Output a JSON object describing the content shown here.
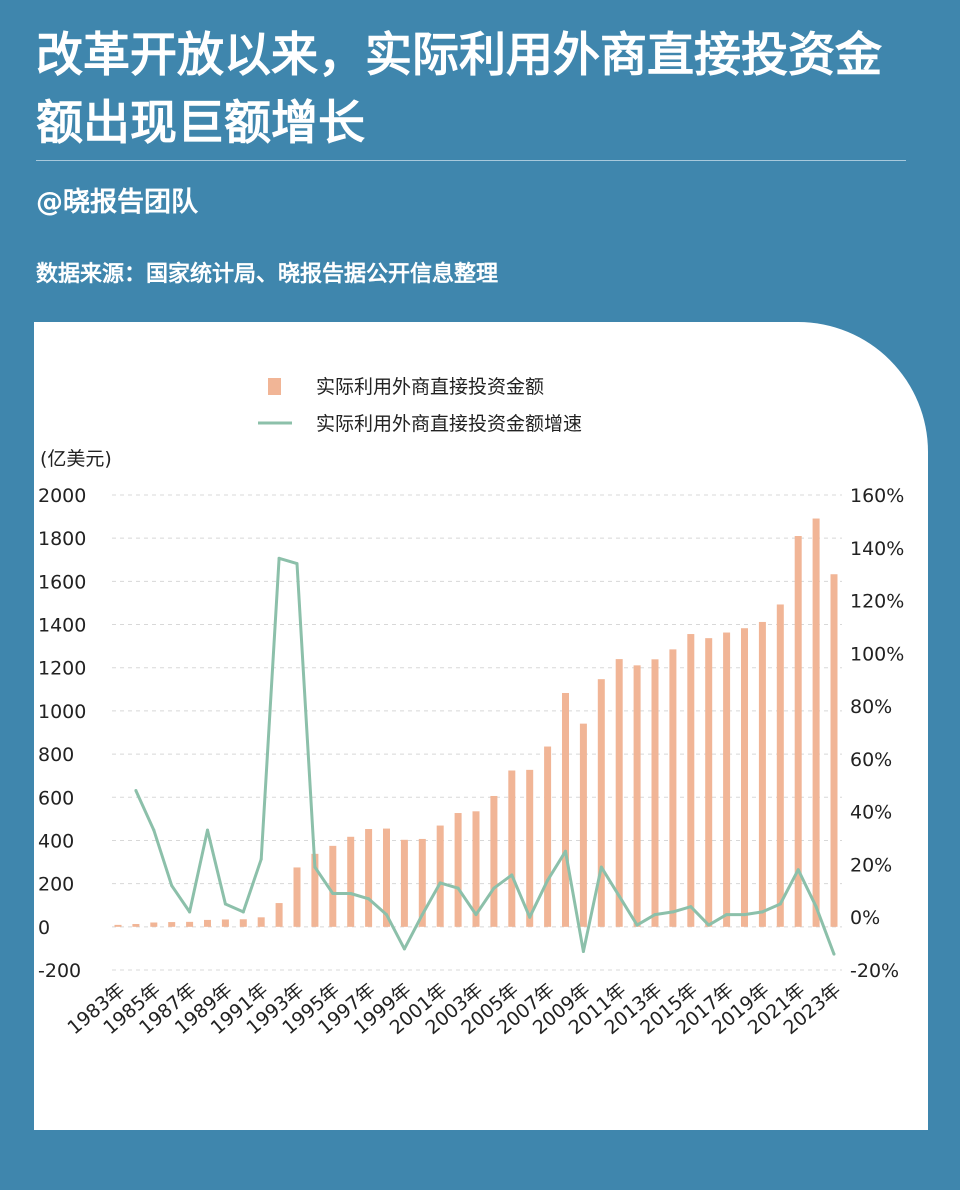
{
  "header": {
    "title": "改革开放以来，实际利用外商直接投资金额出现巨额增长",
    "team": "@晓报告团队",
    "source": "数据来源：国家统计局、晓报告据公开信息整理"
  },
  "colors": {
    "background": "#3f86ad",
    "bar": "#f1b596",
    "line": "#8cc0aa",
    "card": "#ffffff"
  },
  "chart_data": {
    "type": "bar+line",
    "ylabel": "(亿美元)",
    "ylim": [
      -200,
      2000
    ],
    "y2lim": [
      -0.2,
      1.6
    ],
    "yticks": [
      "-200",
      "0",
      "200",
      "400",
      "600",
      "800",
      "1000",
      "1200",
      "1400",
      "1600",
      "1800",
      "2000"
    ],
    "y2ticks": [
      "-20%",
      "0%",
      "20%",
      "40%",
      "60%",
      "80%",
      "100%",
      "120%",
      "140%",
      "160%"
    ],
    "categories": [
      "1983年",
      "1984年",
      "1985年",
      "1986年",
      "1987年",
      "1988年",
      "1989年",
      "1990年",
      "1991年",
      "1992年",
      "1993年",
      "1994年",
      "1995年",
      "1996年",
      "1997年",
      "1998年",
      "1999年",
      "2000年",
      "2001年",
      "2002年",
      "2003年",
      "2004年",
      "2005年",
      "2006年",
      "2007年",
      "2008年",
      "2009年",
      "2010年",
      "2011年",
      "2012年",
      "2013年",
      "2014年",
      "2015年",
      "2016年",
      "2017年",
      "2018年",
      "2019年",
      "2020年",
      "2021年",
      "2022年",
      "2023年"
    ],
    "xticklabels": [
      "1983年",
      "1985年",
      "1987年",
      "1989年",
      "1991年",
      "1993年",
      "1995年",
      "1997年",
      "1999年",
      "2001年",
      "2003年",
      "2005年",
      "2007年",
      "2009年",
      "2011年",
      "2013年",
      "2015年",
      "2017年",
      "2019年",
      "2021年",
      "2023年"
    ],
    "series": [
      {
        "name": "实际利用外商直接投资金额",
        "type": "bar",
        "values": [
          9,
          13,
          20,
          22,
          23,
          32,
          34,
          35,
          44,
          110,
          275,
          338,
          375,
          417,
          453,
          455,
          403,
          407,
          469,
          527,
          535,
          606,
          724,
          727,
          835,
          1083,
          941,
          1147,
          1240,
          1211,
          1239,
          1285,
          1356,
          1337,
          1363,
          1383,
          1412,
          1493,
          1810,
          1891,
          1633
        ]
      },
      {
        "name": "实际利用外商直接投资金额增速",
        "type": "line",
        "axis": "right",
        "values": [
          null,
          0.48,
          0.33,
          0.12,
          0.02,
          0.33,
          0.05,
          0.02,
          0.22,
          1.36,
          1.34,
          0.19,
          0.09,
          0.09,
          0.07,
          0.01,
          -0.12,
          0.01,
          0.13,
          0.11,
          0.01,
          0.11,
          0.16,
          0.0,
          0.14,
          0.25,
          -0.13,
          0.19,
          0.08,
          -0.03,
          0.01,
          0.02,
          0.04,
          -0.03,
          0.01,
          0.01,
          0.02,
          0.05,
          0.18,
          0.04,
          -0.14
        ]
      }
    ],
    "legend": [
      "实际利用外商直接投资金额",
      "实际利用外商直接投资金额增速"
    ]
  }
}
